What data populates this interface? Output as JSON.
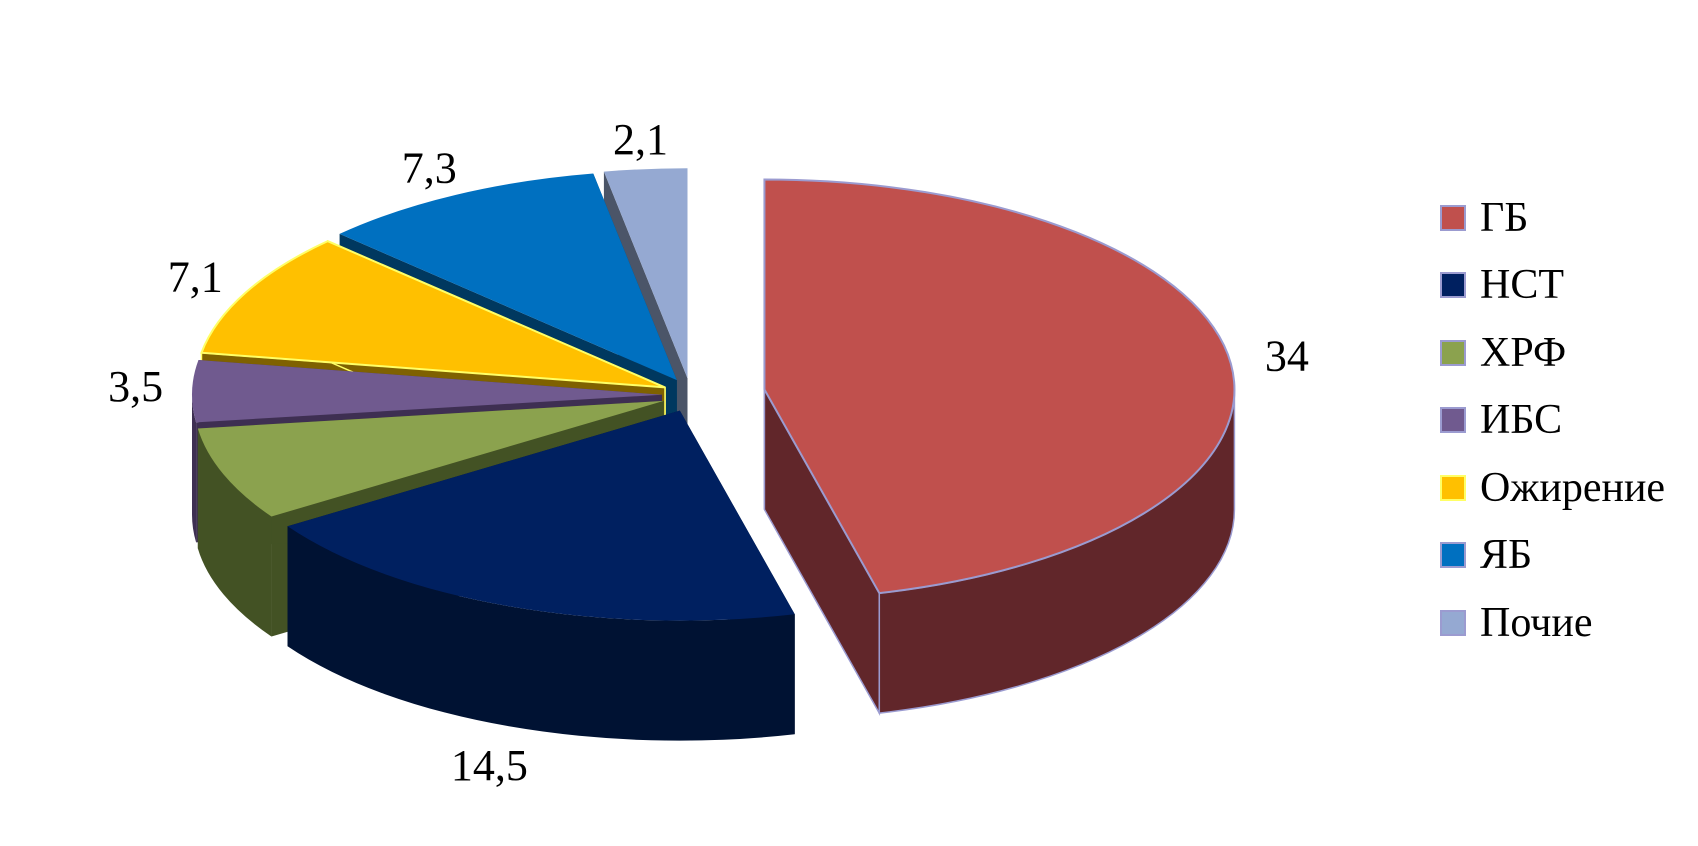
{
  "chart_data": {
    "type": "pie",
    "title": "",
    "categories": [
      "ГБ",
      "НСТ",
      "ХРФ",
      "ИБС",
      "Ожирение",
      "ЯБ",
      "Почие"
    ],
    "values": [
      34,
      14.5,
      5.3,
      3.5,
      7.1,
      7.3,
      2.1
    ],
    "value_labels": [
      "34",
      "14,5",
      "",
      "3,5",
      "7,1",
      "7,3",
      "2,1"
    ],
    "colors": [
      "#C0504D",
      "#002060",
      "#8BA24E",
      "#705A8F",
      "#FFC000",
      "#0070C0",
      "#95A9D2"
    ],
    "side_colors": [
      "#61262A",
      "#001233",
      "#435224",
      "#3E2F52",
      "#7F6100",
      "#00385F",
      "#4B5568"
    ],
    "style": "3d-exploded",
    "legend_position": "right"
  }
}
